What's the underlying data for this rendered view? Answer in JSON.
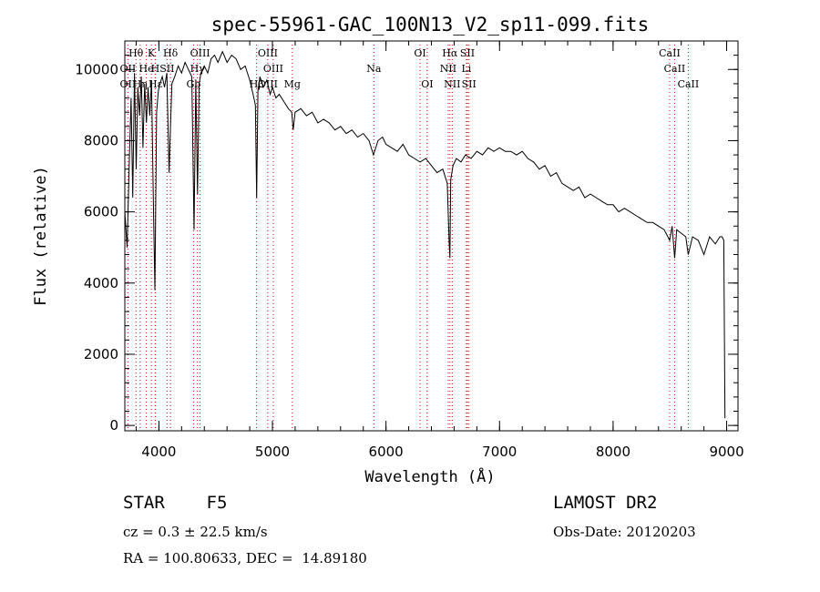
{
  "chart_data": {
    "type": "line",
    "title": "spec-55961-GAC_100N13_V2_sp11-099.fits",
    "xlabel": "Wavelength (Å)",
    "ylabel": "Flux (relative)",
    "xlim": [
      3700,
      9100
    ],
    "ylim": [
      -150,
      10800
    ],
    "xticks": [
      4000,
      5000,
      6000,
      7000,
      8000,
      9000
    ],
    "yticks": [
      0,
      2000,
      4000,
      6000,
      8000,
      10000
    ],
    "x_minor_step": 200,
    "y_minor_step": 400,
    "series": [
      {
        "name": "flux",
        "x": [
          3700,
          3720,
          3740,
          3755,
          3770,
          3785,
          3800,
          3815,
          3830,
          3845,
          3860,
          3875,
          3890,
          3905,
          3920,
          3935,
          3950,
          3965,
          3980,
          3995,
          4010,
          4030,
          4050,
          4070,
          4090,
          4102,
          4115,
          4140,
          4170,
          4200,
          4230,
          4260,
          4290,
          4310,
          4325,
          4340,
          4355,
          4370,
          4400,
          4430,
          4460,
          4490,
          4520,
          4560,
          4600,
          4640,
          4680,
          4720,
          4760,
          4800,
          4830,
          4850,
          4861,
          4872,
          4890,
          4920,
          4950,
          4980,
          5000,
          5030,
          5060,
          5100,
          5140,
          5170,
          5183,
          5200,
          5250,
          5300,
          5350,
          5400,
          5450,
          5500,
          5550,
          5600,
          5650,
          5700,
          5750,
          5800,
          5850,
          5890,
          5930,
          5970,
          6000,
          6050,
          6100,
          6150,
          6200,
          6250,
          6300,
          6350,
          6400,
          6450,
          6500,
          6540,
          6556,
          6563,
          6570,
          6590,
          6620,
          6660,
          6700,
          6750,
          6800,
          6850,
          6900,
          6950,
          7000,
          7050,
          7100,
          7150,
          7200,
          7250,
          7300,
          7350,
          7400,
          7450,
          7500,
          7550,
          7600,
          7650,
          7700,
          7750,
          7800,
          7850,
          7900,
          7950,
          8000,
          8050,
          8100,
          8150,
          8200,
          8250,
          8300,
          8350,
          8400,
          8450,
          8498,
          8520,
          8542,
          8560,
          8600,
          8640,
          8662,
          8700,
          8750,
          8800,
          8850,
          8900,
          8940,
          8960,
          8975,
          8985
        ],
        "values": [
          6000,
          5000,
          7500,
          9200,
          6400,
          9900,
          7200,
          9500,
          8700,
          9800,
          7800,
          9600,
          8500,
          9500,
          8700,
          9700,
          6500,
          3800,
          8800,
          9400,
          9600,
          9800,
          9500,
          9900,
          7100,
          8400,
          9600,
          9800,
          10100,
          9900,
          10200,
          10000,
          9800,
          5500,
          9700,
          6500,
          9600,
          9900,
          10100,
          9900,
          10300,
          10400,
          10200,
          10500,
          10200,
          10400,
          10300,
          10000,
          10100,
          9700,
          9300,
          9000,
          6400,
          9400,
          9800,
          9500,
          9700,
          9300,
          9500,
          9200,
          9300,
          9100,
          8900,
          8800,
          8300,
          8800,
          8900,
          8700,
          8800,
          8500,
          8600,
          8500,
          8300,
          8400,
          8200,
          8300,
          8100,
          8200,
          8000,
          7600,
          8000,
          8100,
          7900,
          7800,
          7700,
          7900,
          7600,
          7500,
          7400,
          7500,
          7300,
          7100,
          7200,
          6800,
          5200,
          4700,
          6900,
          7300,
          7500,
          7400,
          7600,
          7500,
          7700,
          7600,
          7800,
          7700,
          7800,
          7700,
          7700,
          7600,
          7700,
          7500,
          7400,
          7200,
          7300,
          7000,
          7100,
          6800,
          6700,
          6600,
          6700,
          6400,
          6500,
          6400,
          6300,
          6200,
          6200,
          6000,
          6100,
          6000,
          5900,
          5800,
          5700,
          5700,
          5600,
          5500,
          5200,
          5600,
          4700,
          5500,
          5400,
          5300,
          4800,
          5300,
          5200,
          4800,
          5300,
          5100,
          5300,
          5300,
          5200,
          200
        ]
      }
    ],
    "line_markers": [
      {
        "label": "Hθ",
        "x": 3798,
        "row": 1
      },
      {
        "label": "K",
        "x": 3934,
        "row": 1
      },
      {
        "label": "Hδ",
        "x": 4102,
        "row": 1
      },
      {
        "label": "OIII",
        "x": 4363,
        "row": 1
      },
      {
        "label": "OIII",
        "x": 4959,
        "row": 1
      },
      {
        "label": "OI",
        "x": 6300,
        "row": 1
      },
      {
        "label": "Hα",
        "x": 6563,
        "row": 1
      },
      {
        "label": "SII",
        "x": 6717,
        "row": 1
      },
      {
        "label": "CaII",
        "x": 8498,
        "row": 1
      },
      {
        "label": "OII",
        "x": 3727,
        "row": 2
      },
      {
        "label": "He",
        "x": 3889,
        "row": 2
      },
      {
        "label": "H",
        "x": 3968,
        "row": 2
      },
      {
        "label": "SII",
        "x": 4072,
        "row": 2
      },
      {
        "label": "Hγ",
        "x": 4340,
        "row": 2
      },
      {
        "label": "OIII",
        "x": 5007,
        "row": 2
      },
      {
        "label": "Na",
        "x": 5893,
        "row": 2
      },
      {
        "label": "NII",
        "x": 6548,
        "row": 2
      },
      {
        "label": "Li",
        "x": 6708,
        "row": 2
      },
      {
        "label": "CaII",
        "x": 8542,
        "row": 2
      },
      {
        "label": "OII",
        "x": 3727,
        "row": 3
      },
      {
        "label": "Hη",
        "x": 3835,
        "row": 3
      },
      {
        "label": "Hε",
        "x": 3970,
        "row": 3
      },
      {
        "label": "Gb",
        "x": 4305,
        "row": 3
      },
      {
        "label": "Hβ",
        "x": 4861,
        "row": 3
      },
      {
        "label": "OIII",
        "x": 4959,
        "row": 3
      },
      {
        "label": "Mg",
        "x": 5175,
        "row": 3
      },
      {
        "label": "OI",
        "x": 6363,
        "row": 3
      },
      {
        "label": "NII",
        "x": 6583,
        "row": 3
      },
      {
        "label": "SII",
        "x": 6731,
        "row": 3
      },
      {
        "label": "CaII",
        "x": 8662,
        "row": 3
      }
    ],
    "colors": {
      "line": "#000000",
      "marker": "#d40000"
    }
  },
  "info": {
    "object_type": "STAR    F5",
    "survey": "LAMOST DR2",
    "cz": "cz = 0.3 ± 22.5 km/s",
    "obs_date": "Obs-Date: 20120203",
    "coords": "RA = 100.80633, DEC =  14.89180"
  }
}
